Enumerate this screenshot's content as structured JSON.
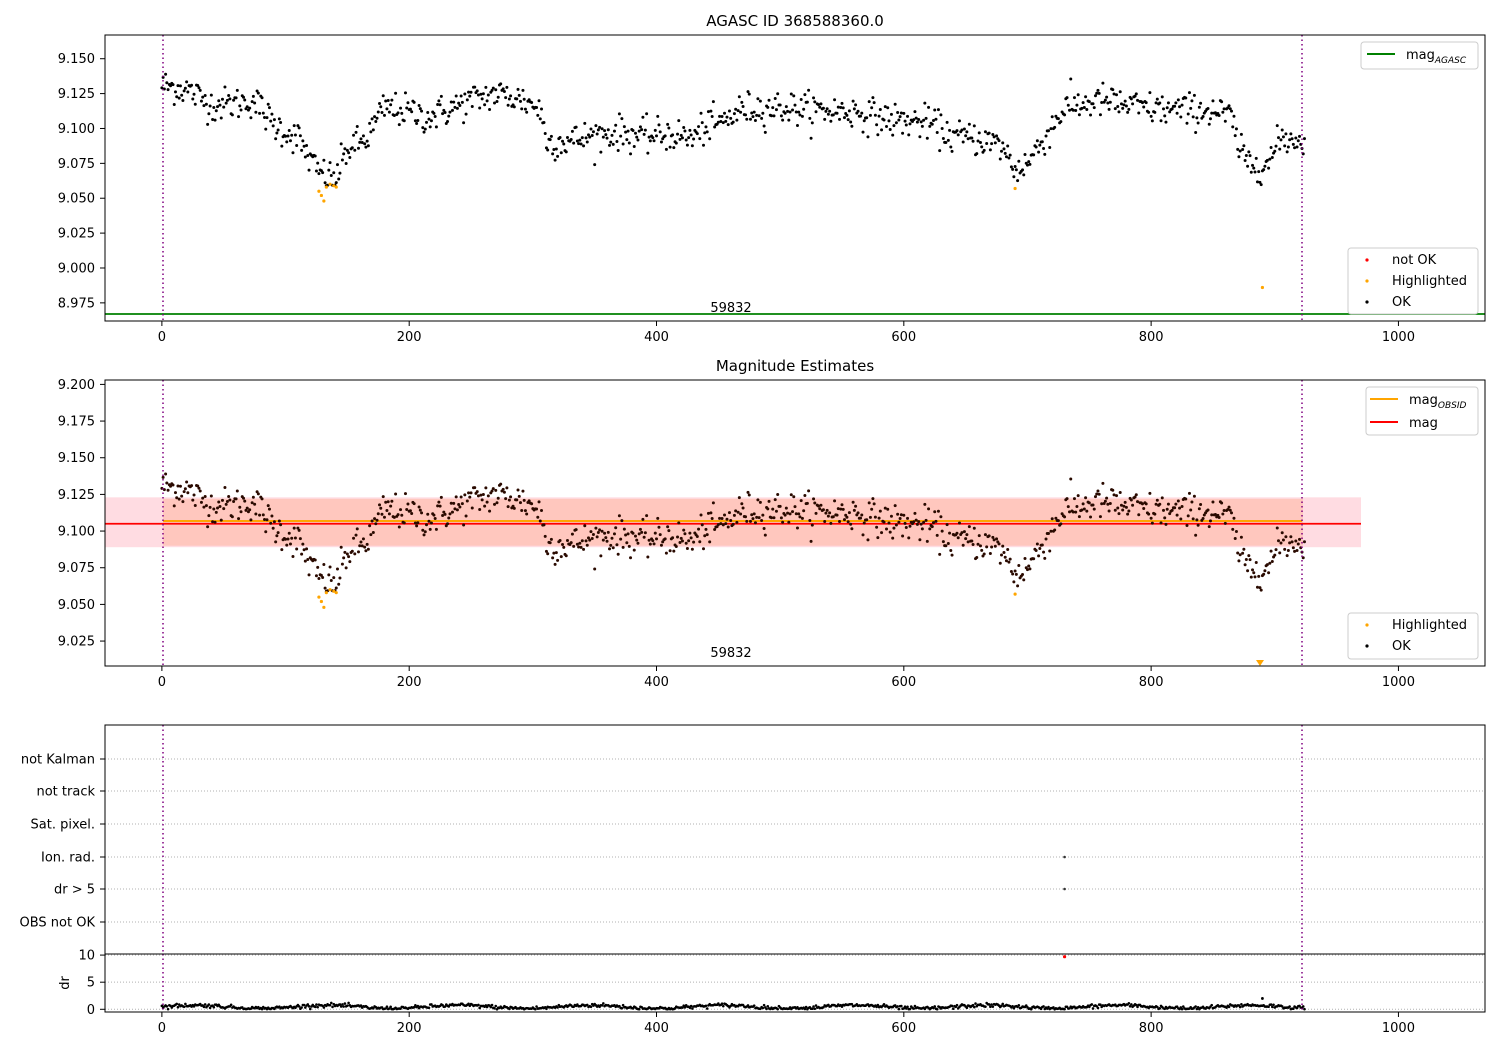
{
  "chart_data": [
    {
      "type": "scatter",
      "title": "AGASC ID 368588360.0",
      "xlim": [
        -46,
        1070
      ],
      "ylim": [
        8.962,
        9.167
      ],
      "xticks": [
        "0",
        "200",
        "400",
        "600",
        "800",
        "1000"
      ],
      "yticks": [
        "8.975",
        "9.000",
        "9.025",
        "9.050",
        "9.075",
        "9.100",
        "9.125",
        "9.150"
      ],
      "vlines": [
        0,
        924
      ],
      "hline": {
        "label": "mag",
        "label_sub": "AGASC",
        "value": 8.967,
        "color": "#008000"
      },
      "annotation": {
        "text": "59832",
        "x": 460,
        "y": 8.967
      },
      "legend_lines": [
        {
          "label": "mag",
          "sub": "AGASC",
          "color": "#008000"
        }
      ],
      "legend_points": [
        {
          "label": "not OK",
          "color": "#ff0000"
        },
        {
          "label": "Highlighted",
          "color": "#ffa500"
        },
        {
          "label": "OK",
          "color": "#000000"
        }
      ],
      "highlighted_points": [
        [
          127,
          9.055
        ],
        [
          129,
          9.052
        ],
        [
          131,
          9.048
        ],
        [
          133,
          9.058
        ],
        [
          136,
          9.06
        ],
        [
          139,
          9.059
        ],
        [
          141,
          9.058
        ],
        [
          690,
          9.057
        ],
        [
          890,
          8.986
        ]
      ]
    },
    {
      "type": "scatter",
      "title": "Magnitude Estimates",
      "xlim": [
        -46,
        1070
      ],
      "ylim": [
        9.008,
        9.203
      ],
      "xticks": [
        "0",
        "200",
        "400",
        "600",
        "800",
        "1000"
      ],
      "yticks": [
        "9.025",
        "9.050",
        "9.075",
        "9.100",
        "9.125",
        "9.150",
        "9.175",
        "9.200"
      ],
      "vlines": [
        0,
        924
      ],
      "mean_mag": 9.105,
      "band_outer": [
        9.089,
        9.123
      ],
      "band_inner": [
        9.09,
        9.122
      ],
      "annotation": {
        "text": "59832",
        "x": 460,
        "y": 9.013
      },
      "legend_lines": [
        {
          "label": "mag",
          "sub": "OBSID",
          "color": "#ffa500"
        },
        {
          "label": "mag",
          "sub": "",
          "color": "#ff0000"
        }
      ],
      "legend_points": [
        {
          "label": "Highlighted",
          "color": "#ffa500"
        },
        {
          "label": "OK",
          "color": "#000000"
        }
      ],
      "highlighted_points": [
        [
          127,
          9.055
        ],
        [
          129,
          9.052
        ],
        [
          131,
          9.048
        ],
        [
          133,
          9.058
        ],
        [
          136,
          9.06
        ],
        [
          139,
          9.059
        ],
        [
          141,
          9.058
        ],
        [
          690,
          9.057
        ]
      ],
      "clipped_point": [
        890,
        9.01
      ]
    },
    {
      "type": "scatter",
      "xlim": [
        -46,
        1070
      ],
      "categories": [
        "not Kalman",
        "not track",
        "Sat. pixel.",
        "Ion. rad.",
        "dr > 5",
        "OBS not OK"
      ],
      "flag_points": [
        {
          "category": "Ion. rad.",
          "x": 730
        },
        {
          "category": "dr > 5",
          "x": 730
        }
      ],
      "vlines": [
        0,
        924
      ]
    },
    {
      "type": "scatter",
      "xlim": [
        -46,
        1070
      ],
      "ylim": [
        -0.5,
        10.2
      ],
      "ylabel": "dr",
      "xticks": [
        "0",
        "200",
        "400",
        "600",
        "800",
        "1000"
      ],
      "yticks": [
        "0",
        "5",
        "10"
      ],
      "vlines": [
        0,
        924
      ],
      "outlier_points": [
        [
          730,
          9.7
        ],
        [
          890,
          2.0
        ]
      ]
    }
  ],
  "series_model": {
    "n_points": 925,
    "scatter": 0.006,
    "knots": [
      [
        0,
        9.131
      ],
      [
        20,
        9.128
      ],
      [
        40,
        9.117
      ],
      [
        60,
        9.118
      ],
      [
        75,
        9.12
      ],
      [
        90,
        9.103
      ],
      [
        110,
        9.093
      ],
      [
        125,
        9.07
      ],
      [
        140,
        9.063
      ],
      [
        150,
        9.085
      ],
      [
        165,
        9.092
      ],
      [
        180,
        9.115
      ],
      [
        200,
        9.112
      ],
      [
        215,
        9.108
      ],
      [
        230,
        9.113
      ],
      [
        250,
        9.12
      ],
      [
        270,
        9.125
      ],
      [
        290,
        9.121
      ],
      [
        305,
        9.115
      ],
      [
        312,
        9.09
      ],
      [
        330,
        9.091
      ],
      [
        350,
        9.095
      ],
      [
        370,
        9.097
      ],
      [
        390,
        9.094
      ],
      [
        410,
        9.096
      ],
      [
        430,
        9.093
      ],
      [
        440,
        9.102
      ],
      [
        450,
        9.103
      ],
      [
        470,
        9.114
      ],
      [
        500,
        9.115
      ],
      [
        530,
        9.113
      ],
      [
        560,
        9.112
      ],
      [
        590,
        9.106
      ],
      [
        620,
        9.104
      ],
      [
        640,
        9.094
      ],
      [
        660,
        9.093
      ],
      [
        680,
        9.087
      ],
      [
        690,
        9.07
      ],
      [
        700,
        9.075
      ],
      [
        715,
        9.095
      ],
      [
        730,
        9.115
      ],
      [
        760,
        9.12
      ],
      [
        790,
        9.115
      ],
      [
        820,
        9.113
      ],
      [
        850,
        9.113
      ],
      [
        865,
        9.108
      ],
      [
        872,
        9.082
      ],
      [
        880,
        9.075
      ],
      [
        895,
        9.075
      ],
      [
        905,
        9.093
      ],
      [
        924,
        9.092
      ]
    ]
  }
}
